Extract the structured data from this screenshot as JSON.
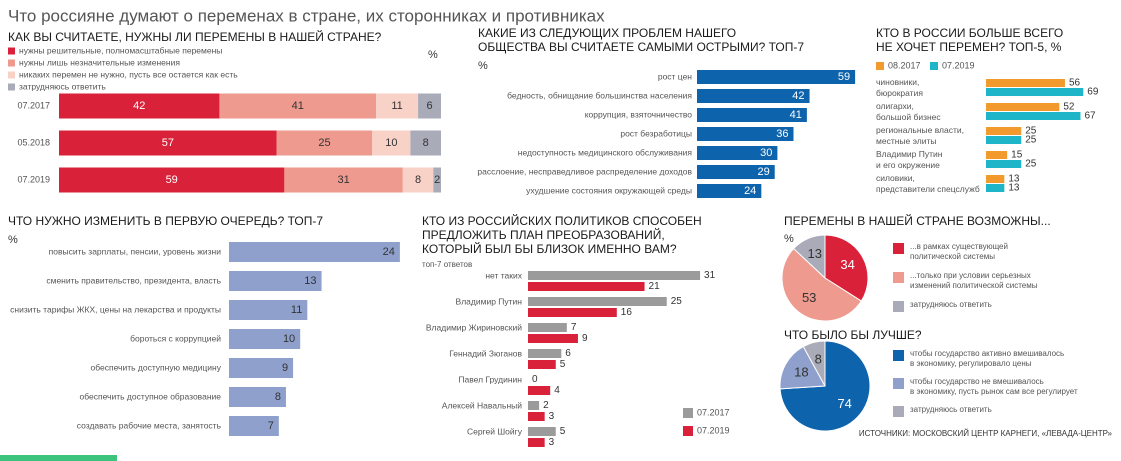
{
  "title": "Что россияне думают о переменах в стране, их сторонниках и противниках",
  "source": "ИСТОЧНИКИ: МОСКОВСКИЙ ЦЕНТР КАРНЕГИ, «ЛЕВАДА-ЦЕНТР»",
  "chart_data": [
    {
      "type": "stacked",
      "title": [
        "КАК ВЫ СЧИТАЕТЕ, НУЖНЫ ЛИ ПЕРЕМЕНЫ В НАШЕЙ СТРАНЕ?"
      ],
      "unit": "%",
      "categories": [
        "07.2017",
        "05.2018",
        "07.2019"
      ],
      "series": [
        {
          "name": "нужны решительные, полномасштабные перемены",
          "color": "#d9213a",
          "values": [
            42,
            57,
            59
          ]
        },
        {
          "name": "нужны лишь незначительные изменения",
          "color": "#ee9a8f",
          "values": [
            41,
            25,
            31
          ]
        },
        {
          "name": "никаких перемен не нужно, пусть все остается как есть",
          "color": "#f8d2c6",
          "values": [
            11,
            10,
            8
          ]
        },
        {
          "name": "затрудняюсь ответить",
          "color": "#a9abb8",
          "values": [
            6,
            8,
            2
          ]
        }
      ]
    },
    {
      "type": "bar",
      "title": [
        "КАКИЕ ИЗ СЛЕДУЮЩИХ ПРОБЛЕМ НАШЕГО",
        "ОБЩЕСТВА ВЫ СЧИТАЕТЕ САМЫМИ ОСТРЫМИ? ТОП-7"
      ],
      "unit": "%",
      "categories": [
        "рост цен",
        "бедность, обнищание большинства населения",
        "коррупция, взяточничество",
        "рост безработицы",
        "недоступность медицинского обслуживания",
        "расслоение, несправедливое распределение доходов",
        "ухудшение состояния окружающей среды"
      ],
      "values": [
        59,
        42,
        41,
        36,
        30,
        29,
        24
      ],
      "color": "#0e63ad"
    },
    {
      "type": "grouped",
      "title": [
        "КТО В РОССИИ БОЛЬШЕ ВСЕГО",
        "НЕ ХОЧЕТ ПЕРЕМЕН? ТОП-5, %"
      ],
      "categories": [
        [
          "чиновники,",
          "бюрократия"
        ],
        [
          "олигархи,",
          "большой бизнес"
        ],
        [
          "региональные власти,",
          "местные элиты"
        ],
        [
          "Владимир Путин",
          "и его окружение"
        ],
        [
          "силовики,",
          "представители спецслужб"
        ]
      ],
      "series": [
        {
          "name": "08.2017",
          "color": "#f39a2e",
          "values": [
            56,
            52,
            25,
            15,
            13
          ]
        },
        {
          "name": "07.2019",
          "color": "#1fb5c9",
          "values": [
            69,
            67,
            25,
            25,
            13
          ]
        }
      ]
    },
    {
      "type": "bar",
      "title": [
        "ЧТО НУЖНО ИЗМЕНИТЬ В ПЕРВУЮ ОЧЕРЕДЬ? ТОП-7"
      ],
      "unit": "%",
      "categories": [
        "повысить зарплаты, пенсии, уровень жизни",
        "сменить правительство, президента, власть",
        "снизить тарифы ЖКХ, цены на лекарства и продукты",
        "бороться с коррупцией",
        "обеспечить доступную медицину",
        "обеспечить доступное образование",
        "создавать рабочие места, занятость"
      ],
      "values": [
        24,
        13,
        11,
        10,
        9,
        8,
        7
      ],
      "color": "#8fa0cc"
    },
    {
      "type": "grouped",
      "title": [
        "КТО ИЗ РОССИЙСКИХ ПОЛИТИКОВ СПОСОБЕН",
        "ПРЕДЛОЖИТЬ ПЛАН ПРЕОБРАЗОВАНИЙ,",
        "КОТОРЫЙ БЫЛ БЫ БЛИЗОК ИМЕННО ВАМ?"
      ],
      "subtitle": "топ-7 ответов",
      "categories": [
        "нет таких",
        "Владимир Путин",
        "Владимир Жириновский",
        "Геннадий Зюганов",
        "Павел Грудинин",
        "Алексей Навальный",
        "Сергей Шойгу"
      ],
      "series": [
        {
          "name": "07.2017",
          "color": "#9b9b9b",
          "values": [
            31,
            25,
            7,
            6,
            0,
            2,
            5
          ]
        },
        {
          "name": "07.2019",
          "color": "#d9213a",
          "values": [
            21,
            16,
            9,
            5,
            4,
            3,
            3
          ]
        }
      ]
    },
    {
      "type": "pie",
      "title": [
        "ПЕРЕМЕНЫ В НАШЕЙ СТРАНЕ ВОЗМОЖНЫ..."
      ],
      "unit": "%",
      "categories": [
        [
          "...в рамках существующей",
          "политической системы"
        ],
        [
          "...только при условии серьезных",
          "изменений политической системы"
        ],
        [
          "затрудняюсь ответить"
        ]
      ],
      "values": [
        34,
        53,
        13
      ],
      "colors": [
        "#d9213a",
        "#ee9a8f",
        "#a9abb8"
      ]
    },
    {
      "type": "pie",
      "title": [
        "ЧТО БЫЛО БЫ ЛУЧШЕ?"
      ],
      "categories": [
        [
          "чтобы государство активно вмешивалось",
          "в экономику, регулировало цены"
        ],
        [
          "чтобы государство не вмешивалось",
          "в экономику, пусть рынок сам все регулирует"
        ],
        [
          "затрудняюсь ответить"
        ]
      ],
      "values": [
        74,
        18,
        8
      ],
      "colors": [
        "#0e63ad",
        "#8fa0cc",
        "#a9abb8"
      ]
    }
  ]
}
